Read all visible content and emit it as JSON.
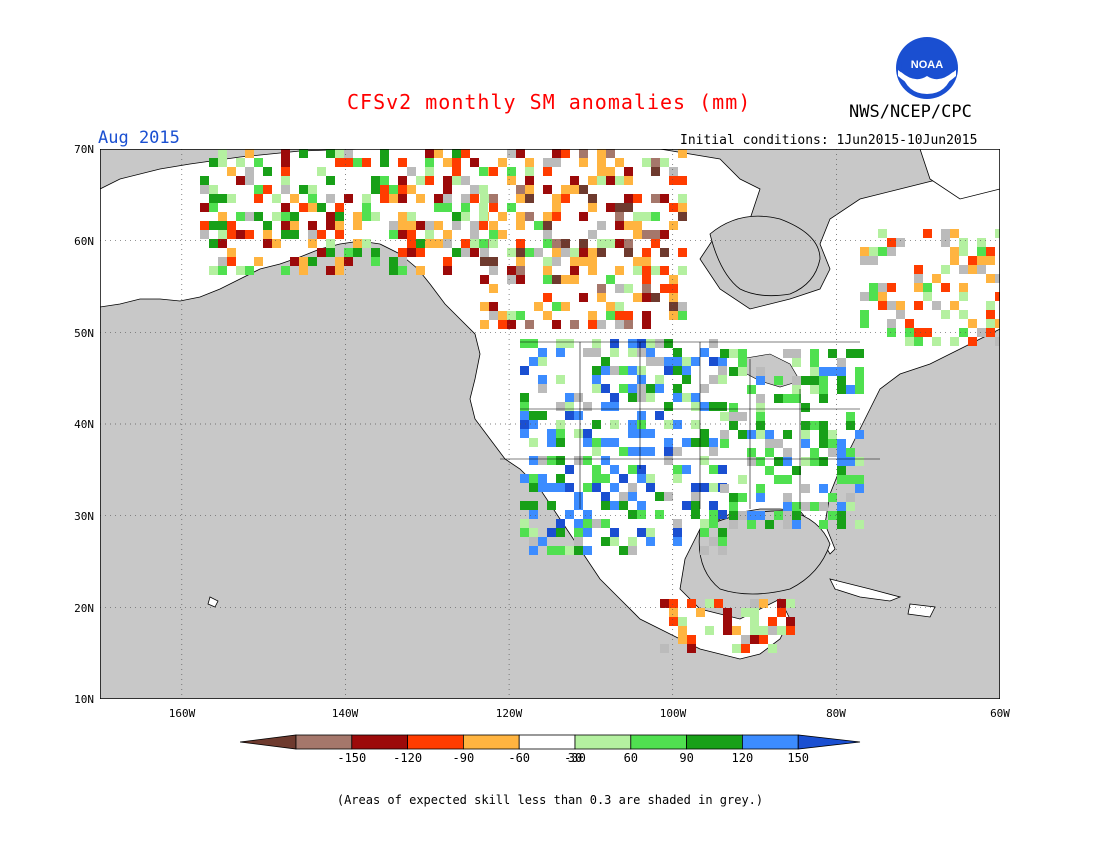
{
  "header": {
    "title": "CFSv2 monthly SM anomalies (mm)",
    "org": "NWS/NCEP/CPC",
    "logo_text": "NOAA",
    "month": "Aug 2015",
    "initial_conditions": "Initial conditions: 1Jun2015-10Jun2015"
  },
  "map": {
    "lat_labels": [
      "70N",
      "60N",
      "50N",
      "40N",
      "30N",
      "20N",
      "10N"
    ],
    "lon_labels": [
      "160W",
      "140W",
      "120W",
      "100W",
      "80W",
      "60W"
    ],
    "colors": {
      "background": "#c8c8c8",
      "land_no_anomaly": "#ffffff",
      "coast": "#000000"
    }
  },
  "colorbar": {
    "labels": [
      "-150",
      "-120",
      "-90",
      "-60",
      "-30",
      "30",
      "60",
      "90",
      "120",
      "150"
    ],
    "colors": [
      "#6e3a2e",
      "#a5776b",
      "#9c0a0a",
      "#ff3c00",
      "#ffb440",
      "#ffffff",
      "#b4f0a0",
      "#50e050",
      "#18a018",
      "#3c8cff",
      "#1a4fd1"
    ]
  },
  "footer": {
    "note": "(Areas of expected skill less than 0.3 are shaded in grey.)"
  }
}
